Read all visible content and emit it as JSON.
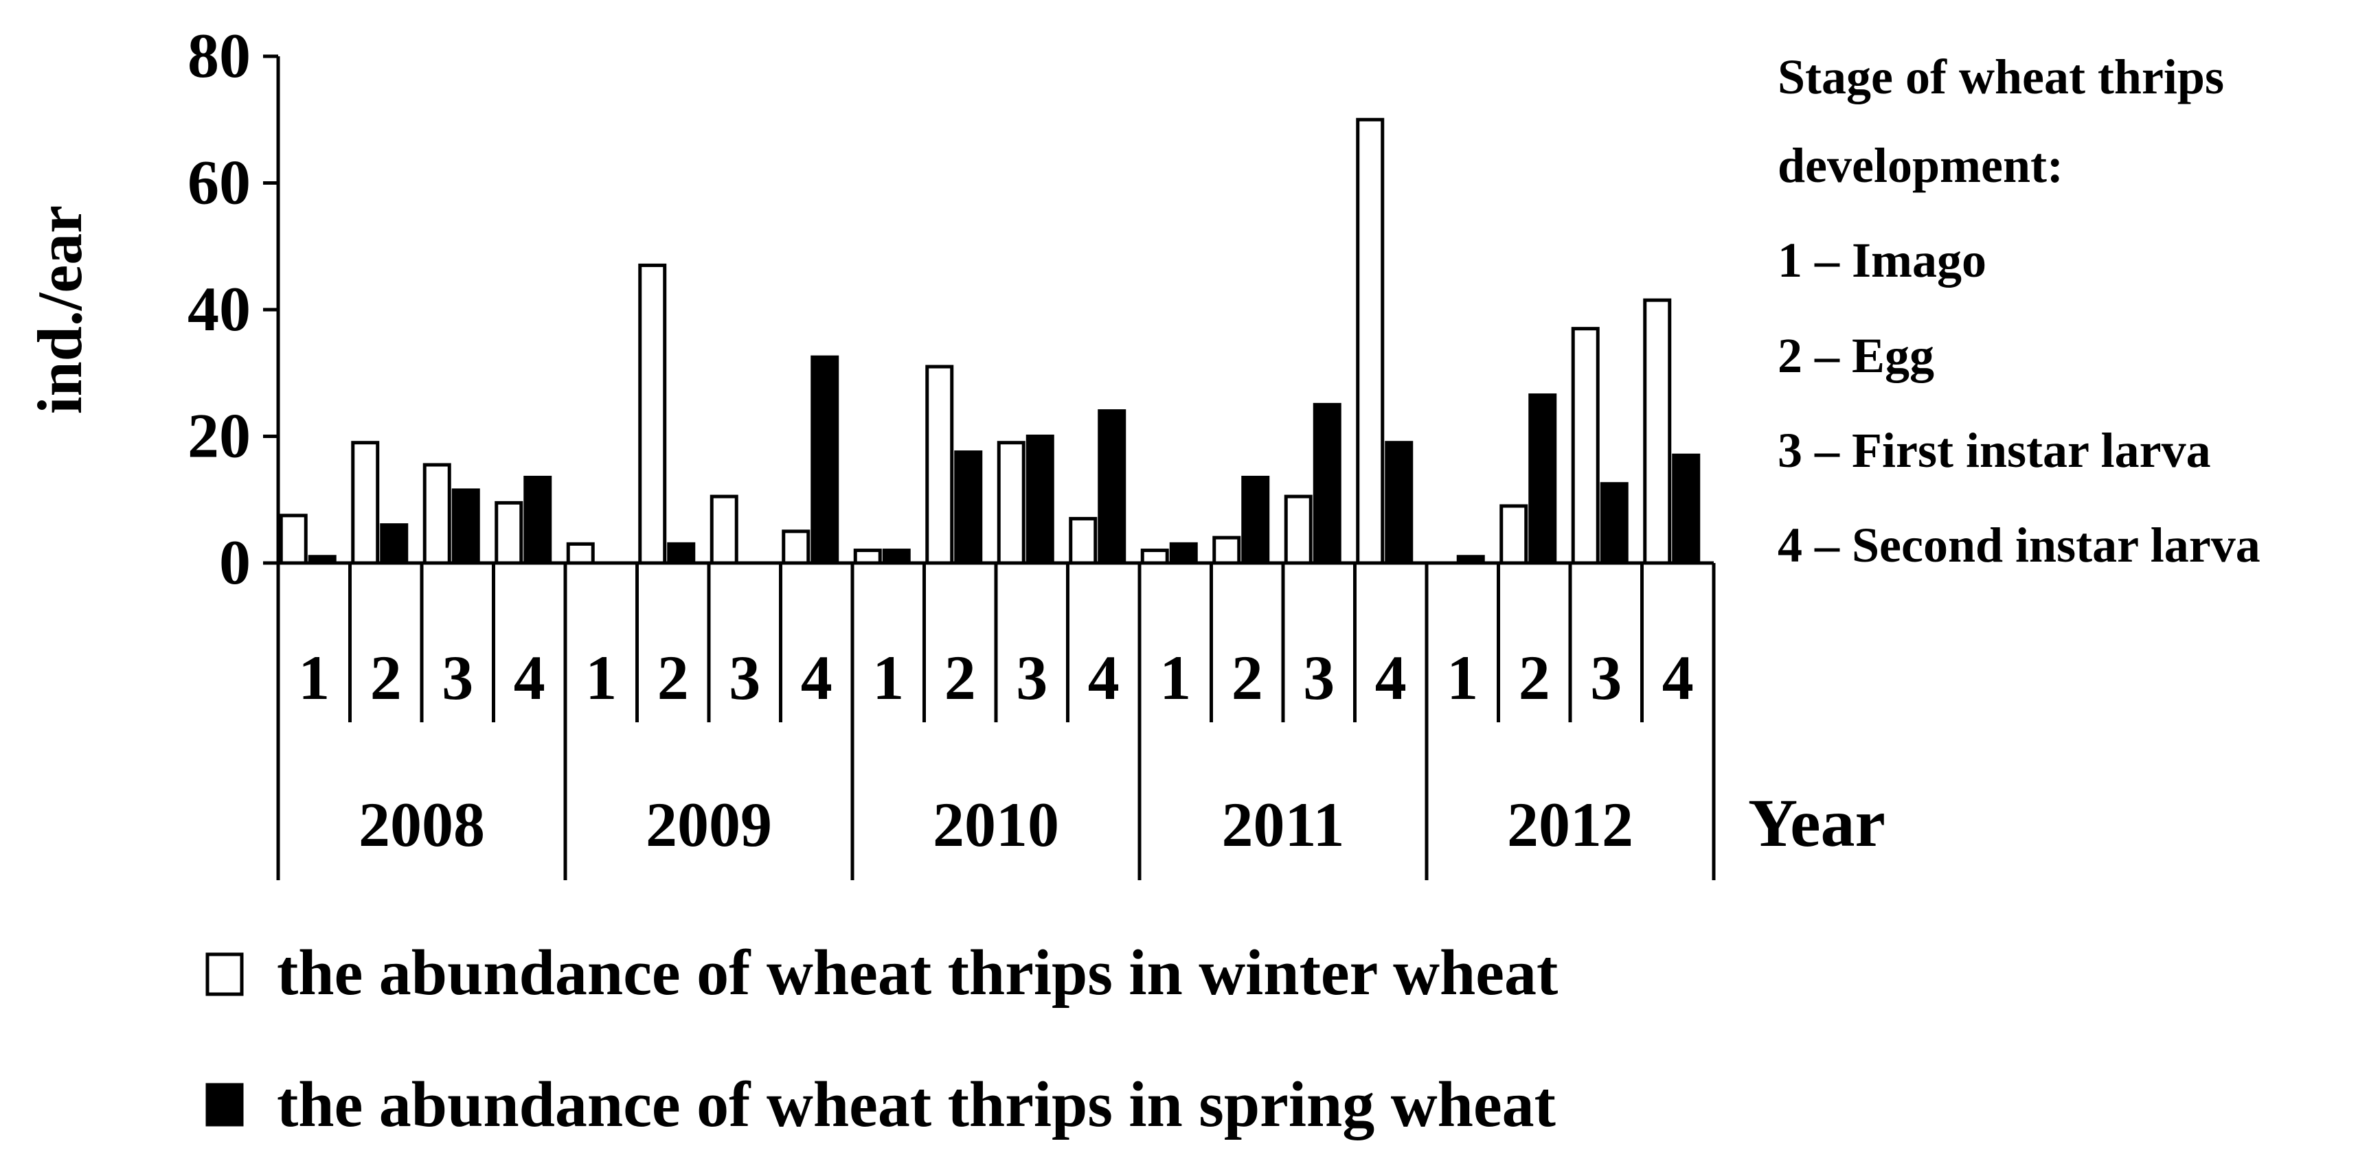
{
  "chart_data": {
    "type": "bar",
    "ylabel": "ind./ear",
    "xlabel": "Year",
    "ylim": [
      0,
      80
    ],
    "yticks": [
      "0",
      "20",
      "40",
      "60",
      "80"
    ],
    "grid": false,
    "years": [
      "2008",
      "2009",
      "2010",
      "2011",
      "2012"
    ],
    "stages": [
      "1",
      "2",
      "3",
      "4"
    ],
    "series": [
      {
        "name": "the abundance of wheat thrips in winter wheat",
        "color": "#ffffff",
        "values": [
          [
            7.5,
            19,
            15.5,
            9.5
          ],
          [
            3,
            47,
            10.5,
            5
          ],
          [
            2,
            31,
            19,
            7
          ],
          [
            2,
            4,
            10.5,
            70
          ],
          [
            0,
            9,
            37,
            41.5
          ]
        ]
      },
      {
        "name": "the abundance of wheat thrips in spring wheat",
        "color": "#000000",
        "values": [
          [
            1,
            6,
            11.5,
            13.5
          ],
          [
            0,
            3,
            0,
            32.5
          ],
          [
            2,
            17.5,
            20,
            24
          ],
          [
            3,
            13.5,
            25,
            19
          ],
          [
            1,
            26.5,
            12.5,
            17
          ]
        ]
      }
    ],
    "stage_legend": {
      "title_line1": "Stage of wheat thrips",
      "title_line2": "development:",
      "items": [
        "1 – Imago",
        "2 – Egg",
        "3 – First instar larva",
        "4 – Second instar larva"
      ]
    }
  }
}
